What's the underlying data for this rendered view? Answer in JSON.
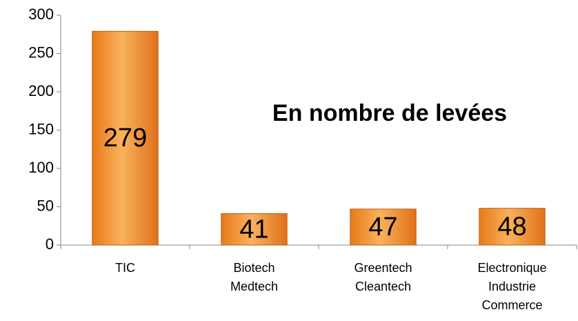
{
  "chart_data": {
    "type": "bar",
    "annotation": "En nombre de levées",
    "categories": [
      "TIC",
      "Biotech\nMedtech",
      "Greentech\nCleantech",
      "Electronique\nIndustrie\nCommerce"
    ],
    "values": [
      279,
      41,
      47,
      48
    ],
    "color": "#f39a34",
    "ylim": [
      0,
      300
    ],
    "yticks": [
      0,
      50,
      100,
      150,
      200,
      250,
      300
    ],
    "grid": false
  }
}
